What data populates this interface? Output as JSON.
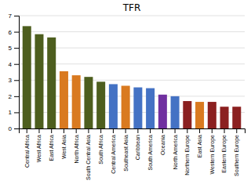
{
  "chart_data": {
    "type": "bar",
    "title": "TFR",
    "categories": [
      "Central Africa",
      "West Africa",
      "East Africa",
      "West Asia",
      "North Africa",
      "South Central Asia",
      "South Africa",
      "Central America",
      "Southeast Asia",
      "Caribbean",
      "South America",
      "Oceania",
      "North America",
      "Northern Europe",
      "East Asia",
      "Western Europe",
      "Eastern Europe",
      "Southern Europe"
    ],
    "values": [
      6.35,
      5.85,
      5.65,
      3.55,
      3.3,
      3.2,
      2.9,
      2.75,
      2.65,
      2.55,
      2.5,
      2.1,
      2.0,
      1.7,
      1.65,
      1.65,
      1.35,
      1.35
    ],
    "colors": [
      "#4d5e1e",
      "#4d5e1e",
      "#4d5e1e",
      "#d97a20",
      "#d97a20",
      "#4d5e1e",
      "#4d5e1e",
      "#4472c4",
      "#d97a20",
      "#4472c4",
      "#4472c4",
      "#7030a0",
      "#4472c4",
      "#8b2020",
      "#d97a20",
      "#8b2020",
      "#8b2020",
      "#8b2020"
    ],
    "ylim": [
      0,
      7
    ],
    "yticks": [
      0,
      1,
      2,
      3,
      4,
      5,
      6,
      7
    ],
    "grid": true
  }
}
